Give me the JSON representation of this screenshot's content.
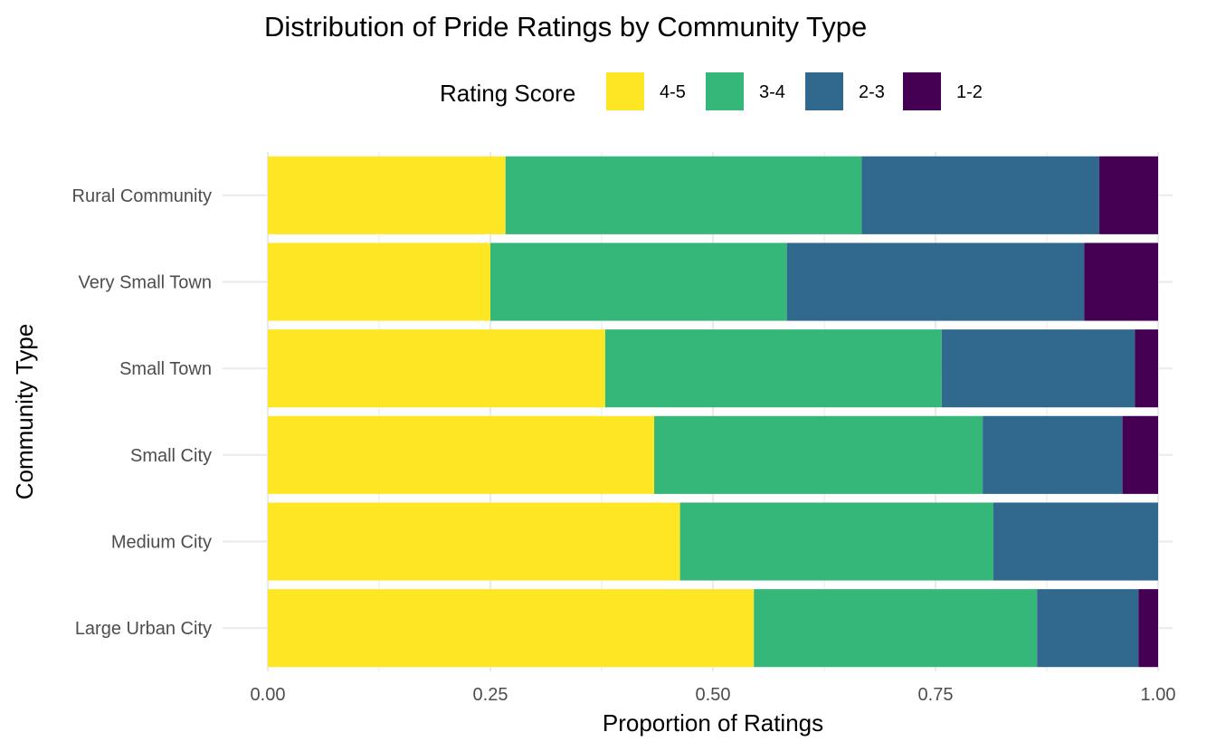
{
  "chart_data": {
    "type": "bar",
    "orientation": "horizontal",
    "stacked": "fill",
    "title": "Distribution of Pride Ratings by Community Type",
    "xlabel": "Proportion of Ratings",
    "ylabel": "Community Type",
    "xlim": [
      0,
      1
    ],
    "x_ticks": [
      "0.00",
      "0.25",
      "0.50",
      "0.75",
      "1.00"
    ],
    "x_tick_values": [
      0,
      0.25,
      0.5,
      0.75,
      1.0
    ],
    "grid": true,
    "legend": {
      "title": "Rating Score",
      "position": "top"
    },
    "categories": [
      "Rural Community",
      "Very Small Town",
      "Small Town",
      "Small City",
      "Medium City",
      "Large Urban City"
    ],
    "series": [
      {
        "name": "4-5",
        "color": "#FDE725",
        "values": [
          0.267,
          0.25,
          0.379,
          0.434,
          0.463,
          0.546
        ]
      },
      {
        "name": "3-4",
        "color": "#35B779",
        "values": [
          0.4,
          0.333,
          0.378,
          0.369,
          0.352,
          0.318
        ]
      },
      {
        "name": "2-3",
        "color": "#31688E",
        "values": [
          0.267,
          0.334,
          0.217,
          0.157,
          0.185,
          0.114
        ]
      },
      {
        "name": "1-2",
        "color": "#440154",
        "values": [
          0.066,
          0.083,
          0.026,
          0.04,
          0.0,
          0.022
        ]
      }
    ]
  }
}
